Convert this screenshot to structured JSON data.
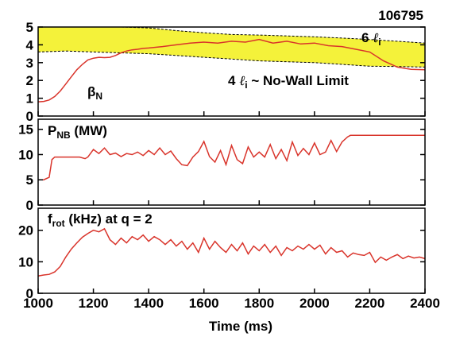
{
  "chart_data": [
    {
      "type": "line",
      "shot_number": "106795",
      "ylim": [
        0,
        5
      ],
      "yticks": [
        0,
        1,
        2,
        3,
        4,
        5
      ],
      "xlim": [
        1000,
        2400
      ],
      "band_upper_label": {
        "prefix": "6 ",
        "symbol": "ℓ",
        "sub": "i"
      },
      "band_lower_label": {
        "prefix": "4 ",
        "symbol": "ℓ",
        "sub": "i",
        "suffix": " ~ No-Wall Limit"
      },
      "series_label": {
        "main": "β",
        "sub": "N"
      },
      "colors": {
        "line": "#d9342b",
        "band": "#f4f23a",
        "band_edge": "#000000"
      },
      "band_upper_x": [
        1000,
        1100,
        1200,
        1300,
        1400,
        1500,
        1600,
        1700,
        1800,
        1900,
        2000,
        2100,
        2200,
        2300,
        2400
      ],
      "band_upper_y": [
        5,
        5,
        5,
        5,
        4.95,
        4.8,
        4.68,
        4.58,
        4.55,
        4.5,
        4.45,
        4.38,
        4.3,
        4.2,
        4.1
      ],
      "band_lower_x": [
        1000,
        1100,
        1200,
        1300,
        1400,
        1500,
        1600,
        1700,
        1800,
        1900,
        2000,
        2100,
        2200,
        2300,
        2400
      ],
      "band_lower_y": [
        3.6,
        3.65,
        3.6,
        3.55,
        3.5,
        3.4,
        3.3,
        3.2,
        3.1,
        3.05,
        3.0,
        2.9,
        2.8,
        2.78,
        2.75
      ],
      "x": [
        1000,
        1020,
        1040,
        1060,
        1080,
        1100,
        1120,
        1140,
        1160,
        1180,
        1200,
        1220,
        1240,
        1260,
        1280,
        1300,
        1320,
        1340,
        1360,
        1380,
        1400,
        1450,
        1500,
        1550,
        1600,
        1650,
        1700,
        1750,
        1800,
        1850,
        1900,
        1950,
        2000,
        2050,
        2100,
        2150,
        2200,
        2250,
        2300,
        2350,
        2400
      ],
      "y": [
        0.8,
        0.82,
        0.9,
        1.1,
        1.4,
        1.8,
        2.2,
        2.6,
        2.9,
        3.15,
        3.25,
        3.3,
        3.28,
        3.3,
        3.4,
        3.55,
        3.65,
        3.72,
        3.75,
        3.8,
        3.82,
        3.9,
        4.0,
        4.1,
        4.15,
        4.1,
        4.2,
        4.15,
        4.3,
        4.1,
        4.2,
        4.05,
        4.1,
        3.95,
        3.9,
        3.75,
        3.6,
        3.1,
        2.75,
        2.62,
        2.6
      ]
    },
    {
      "type": "line",
      "title": {
        "main": "P",
        "sub": "NB",
        "rest": " (MW)"
      },
      "ylim": [
        0,
        17
      ],
      "yticks": [
        0,
        5,
        10,
        15
      ],
      "xlim": [
        1000,
        2400
      ],
      "colors": {
        "line": "#d9342b"
      },
      "x": [
        1000,
        1020,
        1040,
        1050,
        1060,
        1080,
        1100,
        1150,
        1170,
        1180,
        1200,
        1220,
        1240,
        1260,
        1280,
        1300,
        1320,
        1340,
        1360,
        1380,
        1400,
        1420,
        1440,
        1460,
        1480,
        1500,
        1520,
        1540,
        1560,
        1580,
        1600,
        1620,
        1640,
        1660,
        1680,
        1700,
        1720,
        1740,
        1760,
        1780,
        1800,
        1820,
        1840,
        1860,
        1880,
        1900,
        1920,
        1940,
        1960,
        1980,
        2000,
        2020,
        2040,
        2060,
        2080,
        2100,
        2120,
        2130,
        2200,
        2300,
        2400
      ],
      "y": [
        5,
        5,
        5.5,
        9,
        9.5,
        9.5,
        9.5,
        9.5,
        9.2,
        9.5,
        11,
        10.2,
        11.3,
        10,
        10.3,
        9.6,
        10.2,
        10,
        10.5,
        9.8,
        10.8,
        10,
        11.3,
        10,
        10.7,
        9.2,
        8,
        7.8,
        9.5,
        10.6,
        12.6,
        9.6,
        8.5,
        10.8,
        8,
        11.8,
        9,
        8.2,
        11.5,
        9.5,
        10.5,
        9.5,
        12,
        9.2,
        11,
        8.8,
        12.5,
        9.8,
        11.2,
        10,
        12.3,
        10,
        10.5,
        12.8,
        10.6,
        12.5,
        13.5,
        13.8,
        13.8,
        13.8,
        13.8
      ]
    },
    {
      "type": "line",
      "title": {
        "main": "f",
        "sub": "rot",
        "rest": " (kHz) at q = 2"
      },
      "ylim": [
        0,
        27
      ],
      "yticks": [
        0,
        10,
        20
      ],
      "xlim": [
        1000,
        2400
      ],
      "xticks": [
        1000,
        1200,
        1400,
        1600,
        1800,
        2000,
        2200,
        2400
      ],
      "xlabel": "Time (ms)",
      "colors": {
        "line": "#d9342b"
      },
      "x": [
        1000,
        1020,
        1040,
        1060,
        1080,
        1100,
        1120,
        1140,
        1160,
        1180,
        1200,
        1220,
        1240,
        1260,
        1280,
        1300,
        1320,
        1340,
        1360,
        1380,
        1400,
        1420,
        1440,
        1460,
        1480,
        1500,
        1520,
        1540,
        1560,
        1580,
        1600,
        1620,
        1640,
        1660,
        1680,
        1700,
        1720,
        1740,
        1760,
        1780,
        1800,
        1820,
        1840,
        1860,
        1880,
        1900,
        1920,
        1940,
        1960,
        1980,
        2000,
        2020,
        2040,
        2060,
        2080,
        2100,
        2120,
        2140,
        2160,
        2180,
        2200,
        2220,
        2240,
        2260,
        2280,
        2300,
        2320,
        2340,
        2360,
        2380,
        2400
      ],
      "y": [
        5.5,
        5.8,
        6,
        6.8,
        8.5,
        11.5,
        14,
        16,
        17.8,
        19,
        20,
        19.5,
        20.5,
        17,
        15.5,
        17.5,
        16,
        18,
        17,
        18.5,
        16.5,
        18,
        17,
        15.5,
        17,
        15,
        16.5,
        14,
        16,
        13,
        17.5,
        14,
        16.5,
        14.5,
        13,
        15.5,
        13.5,
        16,
        12.5,
        15,
        13.5,
        15.5,
        13,
        15,
        12,
        14.5,
        13.5,
        15,
        14,
        15.5,
        14,
        15.3,
        12.5,
        14.5,
        13,
        13.5,
        11.5,
        12.8,
        12.3,
        12,
        13,
        9.8,
        11.5,
        10.5,
        11.5,
        12.3,
        11,
        11.8,
        11.2,
        11.5,
        11
      ]
    }
  ]
}
